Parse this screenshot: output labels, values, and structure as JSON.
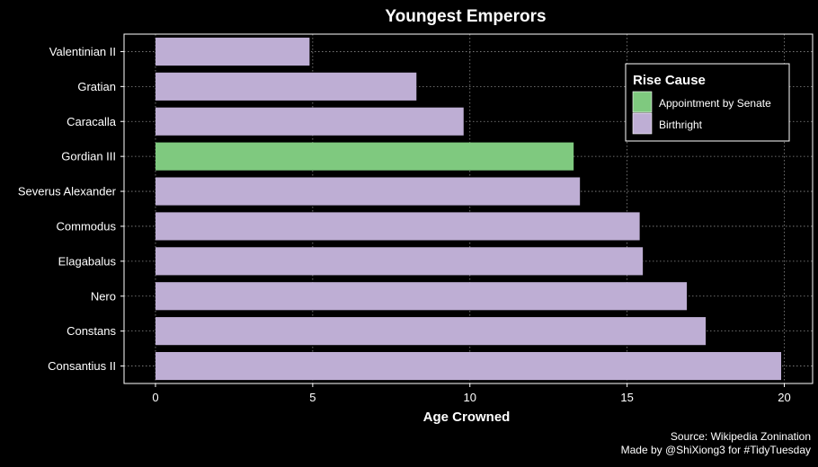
{
  "chart_data": {
    "type": "bar",
    "orientation": "horizontal",
    "title": "Youngest Emperors",
    "xlabel": "Age Crowned",
    "ylabel": "",
    "xlim": [
      -1,
      20.9
    ],
    "xticks": [
      0,
      5,
      10,
      15,
      20
    ],
    "grid": true,
    "legend_title": "Rise Cause",
    "legend_position": "top-right",
    "legend": [
      {
        "label": "Appointment by Senate",
        "color": "#7fc97f"
      },
      {
        "label": "Birthright",
        "color": "#beaed4"
      }
    ],
    "categories": [
      "Valentinian II",
      "Gratian",
      "Caracalla",
      "Gordian III",
      "Severus Alexander",
      "Commodus",
      "Elagabalus",
      "Nero",
      "Constans",
      "Consantius II"
    ],
    "values": [
      4.9,
      8.3,
      9.8,
      13.3,
      13.5,
      15.4,
      15.5,
      16.9,
      17.5,
      19.9
    ],
    "rise_cause": [
      "Birthright",
      "Birthright",
      "Birthright",
      "Appointment by Senate",
      "Birthright",
      "Birthright",
      "Birthright",
      "Birthright",
      "Birthright",
      "Birthright"
    ]
  },
  "caption": {
    "source": "Source: Wikipedia Zonination",
    "credit": "Made by @ShiXiong3 for #TidyTuesday"
  },
  "colors": {
    "background": "#000000",
    "foreground": "#ffffff",
    "grid": "#8c8c8c"
  }
}
